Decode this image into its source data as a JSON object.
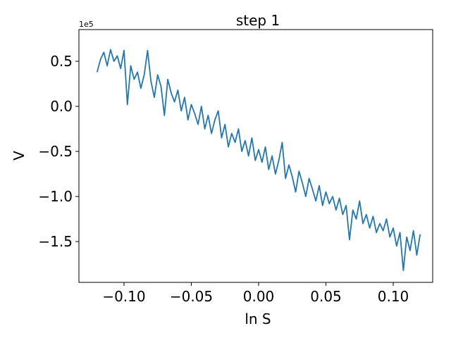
{
  "chart_data": {
    "type": "line",
    "title": "step 1",
    "x_label": "ln S",
    "y_label": "V",
    "y_offset_label": "1e5",
    "color": "#1f77b4",
    "x": [
      -0.12,
      -0.1175,
      -0.115,
      -0.1125,
      -0.11,
      -0.1075,
      -0.105,
      -0.1025,
      -0.1,
      -0.0975,
      -0.095,
      -0.0925,
      -0.09,
      -0.0875,
      -0.085,
      -0.0825,
      -0.08,
      -0.0775,
      -0.075,
      -0.0725,
      -0.07,
      -0.0675,
      -0.065,
      -0.0625,
      -0.06,
      -0.0575,
      -0.055,
      -0.0525,
      -0.05,
      -0.0475,
      -0.045,
      -0.0425,
      -0.04,
      -0.0375,
      -0.035,
      -0.0325,
      -0.03,
      -0.0275,
      -0.025,
      -0.0225,
      -0.02,
      -0.0175,
      -0.015,
      -0.0125,
      -0.01,
      -0.0075,
      -0.005,
      -0.0025,
      0,
      0.0025,
      0.005,
      0.0075,
      0.01,
      0.0125,
      0.015,
      0.0175,
      0.02,
      0.0225,
      0.025,
      0.0275,
      0.03,
      0.0325,
      0.035,
      0.0375,
      0.04,
      0.0425,
      0.045,
      0.0475,
      0.05,
      0.0525,
      0.055,
      0.0575,
      0.06,
      0.0625,
      0.065,
      0.0675,
      0.07,
      0.0725,
      0.075,
      0.0775,
      0.08,
      0.0825,
      0.085,
      0.0875,
      0.09,
      0.0925,
      0.095,
      0.0975,
      0.1,
      0.1025,
      0.105,
      0.1075,
      0.11,
      0.1125,
      0.115,
      0.1175,
      0.12
    ],
    "values": [
      0.38,
      0.52,
      0.6,
      0.45,
      0.63,
      0.5,
      0.56,
      0.42,
      0.62,
      0.02,
      0.45,
      0.3,
      0.38,
      0.2,
      0.35,
      0.62,
      0.28,
      0.1,
      0.35,
      0.22,
      -0.1,
      0.3,
      0.15,
      0.05,
      0.18,
      -0.05,
      0.1,
      -0.15,
      0.02,
      -0.08,
      -0.2,
      0.0,
      -0.25,
      -0.1,
      -0.3,
      -0.15,
      -0.05,
      -0.35,
      -0.2,
      -0.45,
      -0.3,
      -0.4,
      -0.25,
      -0.5,
      -0.38,
      -0.55,
      -0.35,
      -0.6,
      -0.48,
      -0.62,
      -0.45,
      -0.7,
      -0.55,
      -0.75,
      -0.6,
      -0.4,
      -0.8,
      -0.65,
      -0.78,
      -0.95,
      -0.72,
      -0.85,
      -1.0,
      -0.8,
      -0.92,
      -1.05,
      -0.88,
      -1.1,
      -0.95,
      -1.08,
      -1.0,
      -1.15,
      -1.02,
      -1.2,
      -1.1,
      -1.48,
      -1.15,
      -1.25,
      -1.05,
      -1.3,
      -1.2,
      -1.35,
      -1.22,
      -1.4,
      -1.3,
      -1.38,
      -1.25,
      -1.45,
      -1.35,
      -1.55,
      -1.4,
      -1.82,
      -1.45,
      -1.6,
      -1.38,
      -1.65,
      -1.42
    ],
    "xlim": [
      -0.1335,
      0.1293
    ],
    "xticks": [
      {
        "value": -0.1,
        "label": "−0.10"
      },
      {
        "value": -0.05,
        "label": "−0.05"
      },
      {
        "value": 0,
        "label": "0.00"
      },
      {
        "value": 0.05,
        "label": "0.05"
      },
      {
        "value": 0.1,
        "label": "0.10"
      }
    ],
    "ylim": [
      -1.953,
      0.852
    ],
    "yticks": [
      {
        "value": -1.5,
        "label": "−1.5"
      },
      {
        "value": -1.0,
        "label": "−1.0"
      },
      {
        "value": -0.5,
        "label": "−0.5"
      },
      {
        "value": 0,
        "label": "0.0"
      },
      0.5
    ],
    "grid": false
  }
}
